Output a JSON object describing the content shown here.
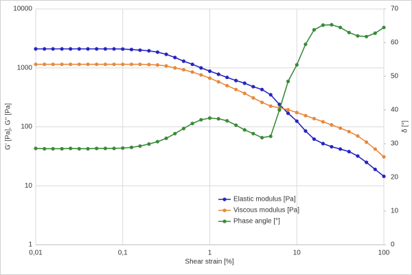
{
  "chart_data": {
    "type": "line",
    "xlabel": "Shear strain [%]",
    "ylabel": "G' [Pa], G'' [Pa]",
    "y2label": "δ [°]",
    "xscale": "log",
    "yscale": "log",
    "grid": true,
    "legend": "lower center",
    "xlim": [
      0.01,
      100
    ],
    "ylim": [
      1,
      10000
    ],
    "y2lim": [
      0,
      70
    ],
    "xticks": [
      {
        "value": 0.01,
        "label": "0,01"
      },
      {
        "value": 0.1,
        "label": "0,1"
      },
      1,
      10,
      100
    ],
    "yticks": [
      1,
      10,
      100,
      1000,
      10000
    ],
    "y2ticks": [
      0,
      10,
      20,
      30,
      40,
      50,
      60,
      70
    ],
    "x": [
      0.01,
      0.0126,
      0.0158,
      0.02,
      0.0251,
      0.0316,
      0.0398,
      0.0501,
      0.0631,
      0.0794,
      0.1,
      0.126,
      0.158,
      0.2,
      0.251,
      0.316,
      0.398,
      0.501,
      0.631,
      0.794,
      1,
      1.26,
      1.58,
      2,
      2.51,
      3.16,
      3.98,
      5.01,
      6.31,
      7.94,
      10,
      12.6,
      15.8,
      20,
      25.1,
      31.6,
      39.8,
      50.1,
      63.1,
      79.4,
      100
    ],
    "series": [
      {
        "name": "Elastic modulus [Pa]",
        "color": "#2525c2",
        "values": [
          2100,
          2100,
          2100,
          2100,
          2100,
          2100,
          2100,
          2100,
          2100,
          2100,
          2090,
          2050,
          2000,
          1950,
          1850,
          1700,
          1500,
          1300,
          1150,
          1000,
          880,
          780,
          690,
          610,
          550,
          480,
          430,
          350,
          240,
          170,
          125,
          85,
          62,
          52,
          46,
          42,
          38,
          32,
          25,
          19,
          14.5
        ]
      },
      {
        "name": "Viscous modulus [Pa]",
        "color": "#e8893c",
        "values": [
          1150,
          1150,
          1150,
          1150,
          1150,
          1150,
          1150,
          1150,
          1150,
          1150,
          1150,
          1150,
          1150,
          1140,
          1120,
          1080,
          1000,
          930,
          850,
          760,
          670,
          580,
          500,
          430,
          370,
          310,
          260,
          225,
          210,
          195,
          175,
          155,
          138,
          122,
          108,
          95,
          83,
          70,
          55,
          42,
          31
        ]
      },
      {
        "name": "Phase angle [°]",
        "color": "#3a8a3a",
        "axis": "y2",
        "values": [
          28.6,
          28.5,
          28.5,
          28.5,
          28.6,
          28.5,
          28.5,
          28.6,
          28.6,
          28.6,
          28.7,
          28.9,
          29.3,
          29.9,
          30.6,
          31.6,
          33,
          34.5,
          36,
          37.1,
          37.6,
          37.4,
          36.8,
          35.5,
          34.1,
          33,
          31.8,
          32.2,
          40,
          48.5,
          53.4,
          59.5,
          63.8,
          65.2,
          65.3,
          64.5,
          63,
          62,
          61.8,
          62.8,
          64.5
        ]
      }
    ]
  }
}
